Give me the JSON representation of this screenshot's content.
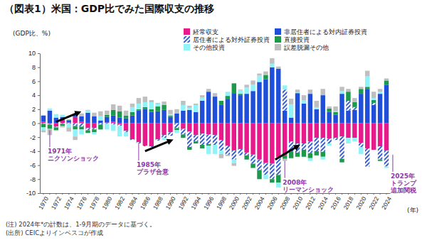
{
  "chart_data": {
    "type": "bar",
    "title": "（図表1）米国：GDP比でみた国際収支の推移",
    "y_label": "(GDP比、%)",
    "x_label": "(年)",
    "notes": [
      "(注) 2024年*の計数は、1-9月期のデータに基づく。",
      "(出所) CEICよりインベスコが作成"
    ],
    "stacked": true,
    "grid": false,
    "legend": "top",
    "ylim": [
      -10,
      10
    ],
    "yticks": [
      -10,
      -8,
      -6,
      -4,
      -2,
      0,
      2,
      4,
      6,
      8,
      10
    ],
    "categories": [
      1970,
      null,
      1972,
      null,
      1974,
      null,
      1976,
      null,
      1978,
      null,
      1980,
      null,
      1982,
      null,
      1984,
      null,
      1986,
      null,
      1988,
      null,
      1990,
      null,
      1992,
      null,
      1994,
      null,
      1996,
      null,
      1998,
      null,
      2000,
      null,
      2002,
      null,
      2004,
      null,
      2006,
      null,
      2008,
      null,
      2010,
      null,
      2012,
      null,
      2014,
      null,
      2016,
      null,
      2018,
      null,
      2020,
      null,
      2022,
      null,
      2024
    ],
    "series": [
      {
        "name": "経常収支",
        "color": "#e8198b",
        "values": [
          0.2,
          -0.1,
          -0.5,
          0.5,
          0.1,
          0.9,
          0.2,
          -0.7,
          -0.7,
          0.0,
          0.1,
          0.2,
          -0.2,
          -1.1,
          -2.3,
          -2.7,
          -3.2,
          -3.3,
          -2.3,
          -1.7,
          -1.3,
          0.0,
          -0.8,
          -1.2,
          -1.7,
          -1.5,
          -1.6,
          -1.7,
          -2.4,
          -3.2,
          -3.9,
          -3.7,
          -4.2,
          -4.5,
          -5.2,
          -5.7,
          -5.8,
          -4.9,
          -4.6,
          -2.6,
          -2.9,
          -2.9,
          -2.6,
          -2.1,
          -2.1,
          -2.2,
          -2.1,
          -1.9,
          -2.1,
          -2.1,
          -2.8,
          -3.6,
          -3.8,
          -3.3,
          -3.9
        ]
      },
      {
        "name": "非居住者による対内証券投資",
        "color": "#1f4ed8",
        "values": [
          0.9,
          1.8,
          0.8,
          0.4,
          0.3,
          0.4,
          0.8,
          1.5,
          1.0,
          0.4,
          0.8,
          0.9,
          0.8,
          0.7,
          1.1,
          1.8,
          2.0,
          1.6,
          1.7,
          1.9,
          0.9,
          1.4,
          1.8,
          1.9,
          1.6,
          3.2,
          4.5,
          3.8,
          2.6,
          3.4,
          4.3,
          4.0,
          4.2,
          4.6,
          5.9,
          6.3,
          8.0,
          7.8,
          1.8,
          0.8,
          4.3,
          2.8,
          4.2,
          2.0,
          4.0,
          1.6,
          1.2,
          4.2,
          1.8,
          1.9,
          4.2,
          4.9,
          2.6,
          4.2,
          5.5
        ]
      },
      {
        "name": "居住者による対外証券投資",
        "color": "#3a5fd0",
        "line_style": "hatched",
        "values": [
          -0.1,
          -0.1,
          -0.1,
          -0.1,
          -0.1,
          -0.4,
          -0.5,
          -0.3,
          -0.2,
          -0.2,
          -0.1,
          -0.2,
          -0.2,
          -0.2,
          -0.1,
          -0.2,
          -0.1,
          -0.1,
          -0.2,
          -0.4,
          -0.5,
          -0.7,
          -0.8,
          -2.2,
          -0.9,
          -1.6,
          -1.4,
          -1.4,
          -1.5,
          -1.3,
          -1.3,
          -0.9,
          -0.4,
          -1.3,
          -1.5,
          -1.7,
          -2.2,
          -2.5,
          3.0,
          -1.5,
          -1.3,
          -0.9,
          -1.7,
          -1.9,
          -2.0,
          -0.7,
          -0.3,
          -3.2,
          1.4,
          0.4,
          -0.6,
          -2.6,
          0.3,
          -1.9,
          -2.3
        ]
      },
      {
        "name": "直接投資",
        "color": "#1a9a4a",
        "values": [
          -0.5,
          -0.6,
          -0.4,
          -0.3,
          0.1,
          -0.5,
          -0.4,
          -0.4,
          -0.4,
          -0.7,
          0.3,
          0.8,
          0.9,
          0.4,
          0.5,
          0.2,
          0.3,
          0.4,
          0.7,
          0.7,
          0.2,
          -0.3,
          -0.5,
          -0.4,
          -0.3,
          -0.5,
          -0.2,
          0.0,
          0.6,
          0.5,
          1.4,
          0.2,
          -0.6,
          -0.6,
          -1.3,
          0.6,
          -0.5,
          -1.1,
          -0.5,
          -0.9,
          -0.6,
          -1.0,
          -0.7,
          -0.6,
          -0.7,
          0.5,
          0.4,
          -0.5,
          1.3,
          0.7,
          0.7,
          0.3,
          0.4,
          -0.2,
          0.6
        ]
      },
      {
        "name": "その他投資",
        "color": "#8ff3f7",
        "values": [
          -0.4,
          0.3,
          0.5,
          0.3,
          -0.5,
          -1.0,
          -0.7,
          0.3,
          -0.3,
          0.6,
          -0.8,
          -0.9,
          -1.5,
          -0.6,
          0.7,
          0.8,
          0.7,
          1.0,
          0.4,
          -0.3,
          0.2,
          -0.4,
          0.8,
          0.3,
          1.0,
          0.5,
          -1.2,
          -1.3,
          -0.5,
          0.6,
          -0.5,
          0.5,
          0.9,
          0.9,
          0.9,
          -0.6,
          0.5,
          -0.7,
          0.6,
          1.9,
          0.1,
          0.5,
          -0.4,
          0.3,
          -0.4,
          -0.3,
          0.1,
          0.4,
          -0.8,
          -0.5,
          -1.0,
          1.5,
          0.3,
          0.3,
          -0.2
        ]
      },
      {
        "name": "誤差脱漏その他",
        "color": "#bfbfbf",
        "values": [
          -0.3,
          -0.9,
          -0.1,
          -0.2,
          -0.6,
          -0.5,
          0.4,
          0.1,
          0.5,
          0.7,
          0.6,
          0.8,
          0.8,
          0.7,
          0.5,
          0.8,
          0.8,
          0.3,
          0.1,
          0.5,
          0.6,
          0.6,
          0.6,
          0.3,
          0.2,
          0.3,
          0.4,
          0.5,
          -0.6,
          -0.2,
          -0.4,
          0.1,
          0.4,
          0.6,
          0.3,
          0.5,
          0.8,
          0.3,
          -0.3,
          0.8,
          0.4,
          0.7,
          0.6,
          0.9,
          0.9,
          0.3,
          0.7,
          0.6,
          0.4,
          0.6,
          0.3,
          0.8,
          0.9,
          0.4,
          0.3
        ]
      }
    ],
    "annotations": [
      {
        "text": [
          "1971年",
          "ニクソンショック"
        ],
        "x": 1971,
        "y": -1.0
      },
      {
        "text": [
          "1985年",
          "プラザ合意"
        ],
        "x": 1985,
        "y": -2.9
      },
      {
        "text": [
          "2008年",
          "リーマンショック"
        ],
        "x": 2008,
        "y": -5.4
      },
      {
        "text": [
          "2025年",
          "トランプ",
          "追加関税"
        ],
        "x": 2025,
        "y": -4.5
      }
    ],
    "arrows": [
      {
        "x": [
          1972,
          1975.5
        ],
        "y": [
          0.2,
          1.5
        ]
      },
      {
        "x": [
          1986,
          1990
        ],
        "y": [
          -4.0,
          -2.5
        ]
      },
      {
        "x": [
          2006.5,
          2010
        ],
        "y": [
          -5.2,
          -3.3
        ]
      }
    ]
  }
}
